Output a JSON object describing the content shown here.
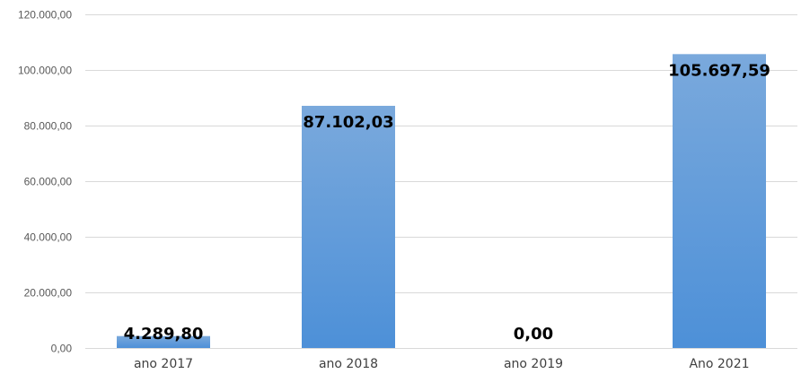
{
  "chart_data": {
    "type": "bar",
    "categories": [
      "ano 2017",
      "ano 2018",
      "ano 2019",
      "Ano 2021"
    ],
    "values": [
      4289.8,
      87102.03,
      0.0,
      105697.59
    ],
    "data_labels": [
      "4.289,80",
      "87.102,03",
      "0,00",
      "105.697,59"
    ],
    "y_ticks": [
      0,
      20000,
      40000,
      60000,
      80000,
      100000,
      120000
    ],
    "y_tick_labels": [
      "0,00",
      "20.000,00",
      "40.000,00",
      "60.000,00",
      "80.000,00",
      "100.000,00",
      "120.000,00"
    ],
    "ylim": [
      0,
      120000
    ],
    "grid": true,
    "legend": "none",
    "title": "",
    "xlabel": "",
    "ylabel": "",
    "bar_color_top": "#7aa9dc",
    "bar_color_bottom": "#4d90d8"
  }
}
